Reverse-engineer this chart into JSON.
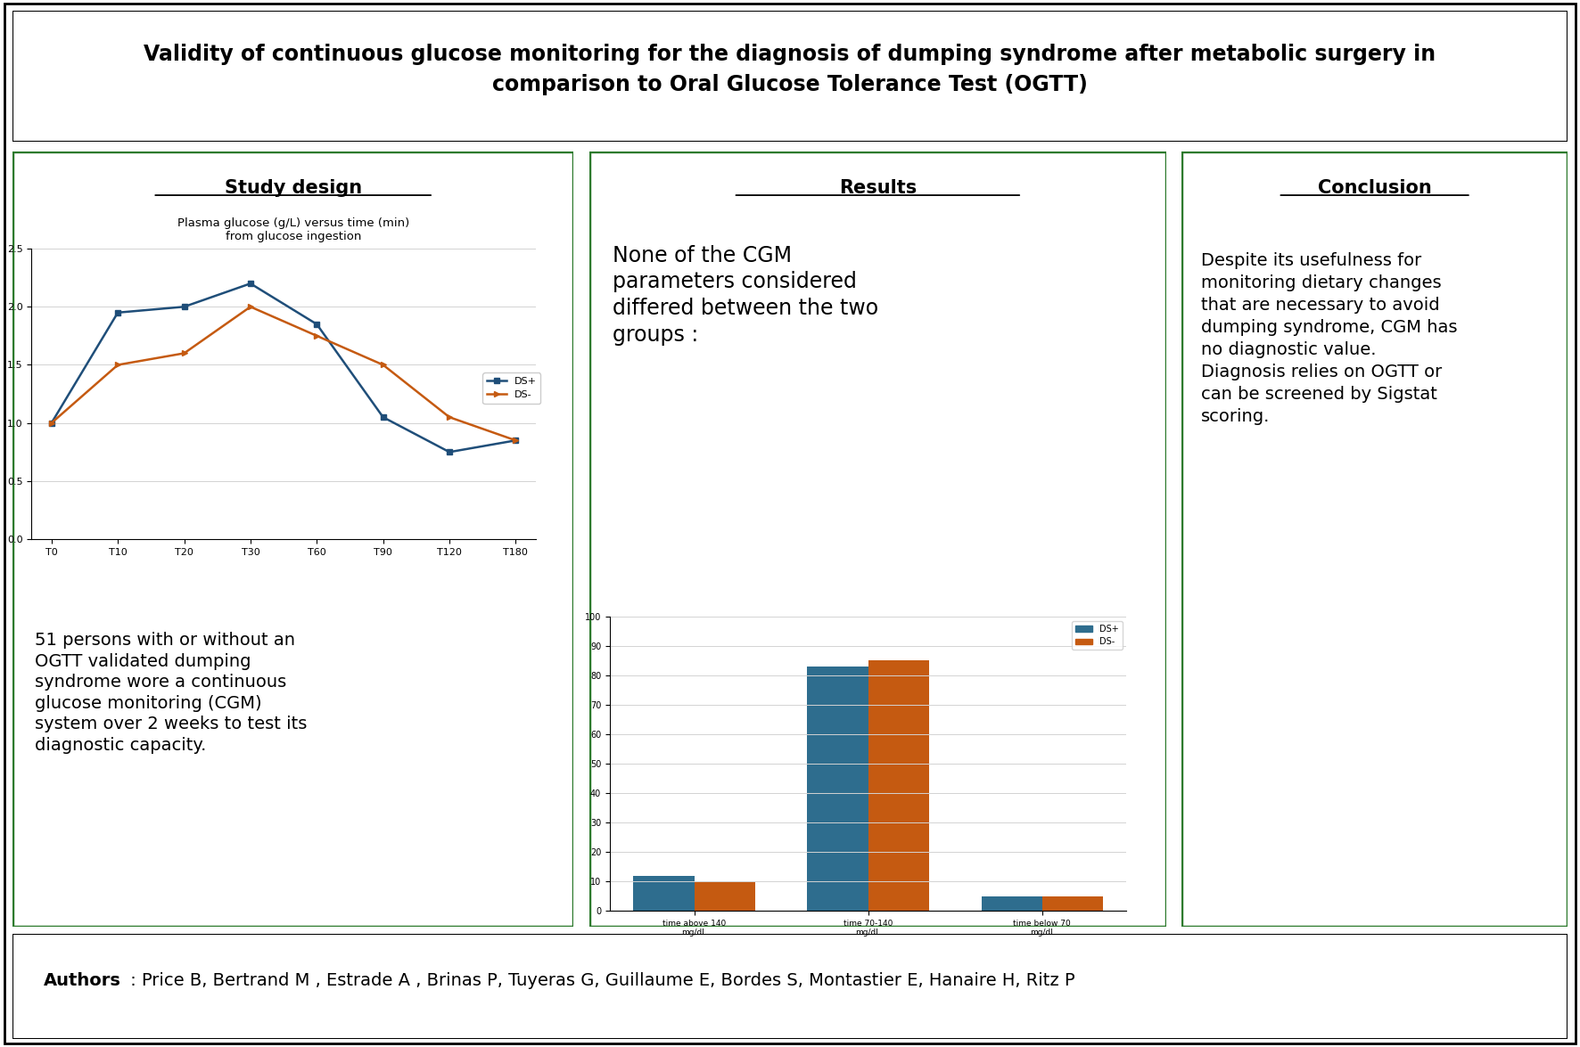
{
  "title_line1": "Validity of continuous glucose monitoring for the diagnosis of dumping syndrome after metabolic surgery in",
  "title_line2": "comparison to Oral Glucose Tolerance Test (OGTT)",
  "title_fontsize": 17,
  "bg_color": "#ffffff",
  "border_color_outer": "#000000",
  "green_border": "#2d7a2d",
  "panel1_title": "Study design",
  "panel1_subtitle": "Plasma glucose (g/L) versus time (min)\nfrom glucose ingestion",
  "line_x_labels": [
    "T0",
    "T10",
    "T20",
    "T30",
    "T60",
    "T90",
    "T120",
    "T180"
  ],
  "ds_plus_y": [
    1.0,
    1.95,
    2.0,
    2.2,
    1.85,
    1.05,
    0.75,
    0.85
  ],
  "ds_minus_y": [
    1.0,
    1.5,
    1.6,
    2.0,
    1.75,
    1.5,
    1.05,
    0.85
  ],
  "ds_plus_color": "#1f4e79",
  "ds_minus_color": "#c55a11",
  "line_ylim": [
    0,
    2.5
  ],
  "line_yticks": [
    0,
    0.5,
    1.0,
    1.5,
    2.0,
    2.5
  ],
  "panel1_body": "51 persons with or without an\nOGTT validated dumping\nsyndrome wore a continuous\nglucose monitoring (CGM)\nsystem over 2 weeks to test its\ndiagnostic capacity.",
  "panel2_title": "Results",
  "panel2_text": "None of the CGM\nparameters considered\ndiffered between the two\ngroups :",
  "bar_labels_short": [
    "time above 140\nmg/dL",
    "time 70-140\nmg/dL",
    "time below 70\nmg/dL"
  ],
  "bar_ds_plus": [
    12,
    83,
    5
  ],
  "bar_ds_minus": [
    10,
    85,
    5
  ],
  "bar_ds_plus_color": "#2e6d8e",
  "bar_ds_minus_color": "#c55a11",
  "bar_ylim": [
    0,
    100
  ],
  "bar_yticks": [
    0,
    10,
    20,
    30,
    40,
    50,
    60,
    70,
    80,
    90,
    100
  ],
  "panel3_title": "Conclusion",
  "panel3_text": "Despite its usefulness for\nmonitoring dietary changes\nthat are necessary to avoid\ndumping syndrome, CGM has\nno diagnostic value.\nDiagnosis relies on OGTT or\ncan be screened by Sigstat\nscoring.",
  "authors_bold": "Authors",
  "authors_normal": " : Price B, Bertrand M , Estrade A , Brinas P, Tuyeras G, Guillaume E, Bordes S, Montastier E, Hanaire H, Ritz P",
  "authors_fontsize": 14
}
